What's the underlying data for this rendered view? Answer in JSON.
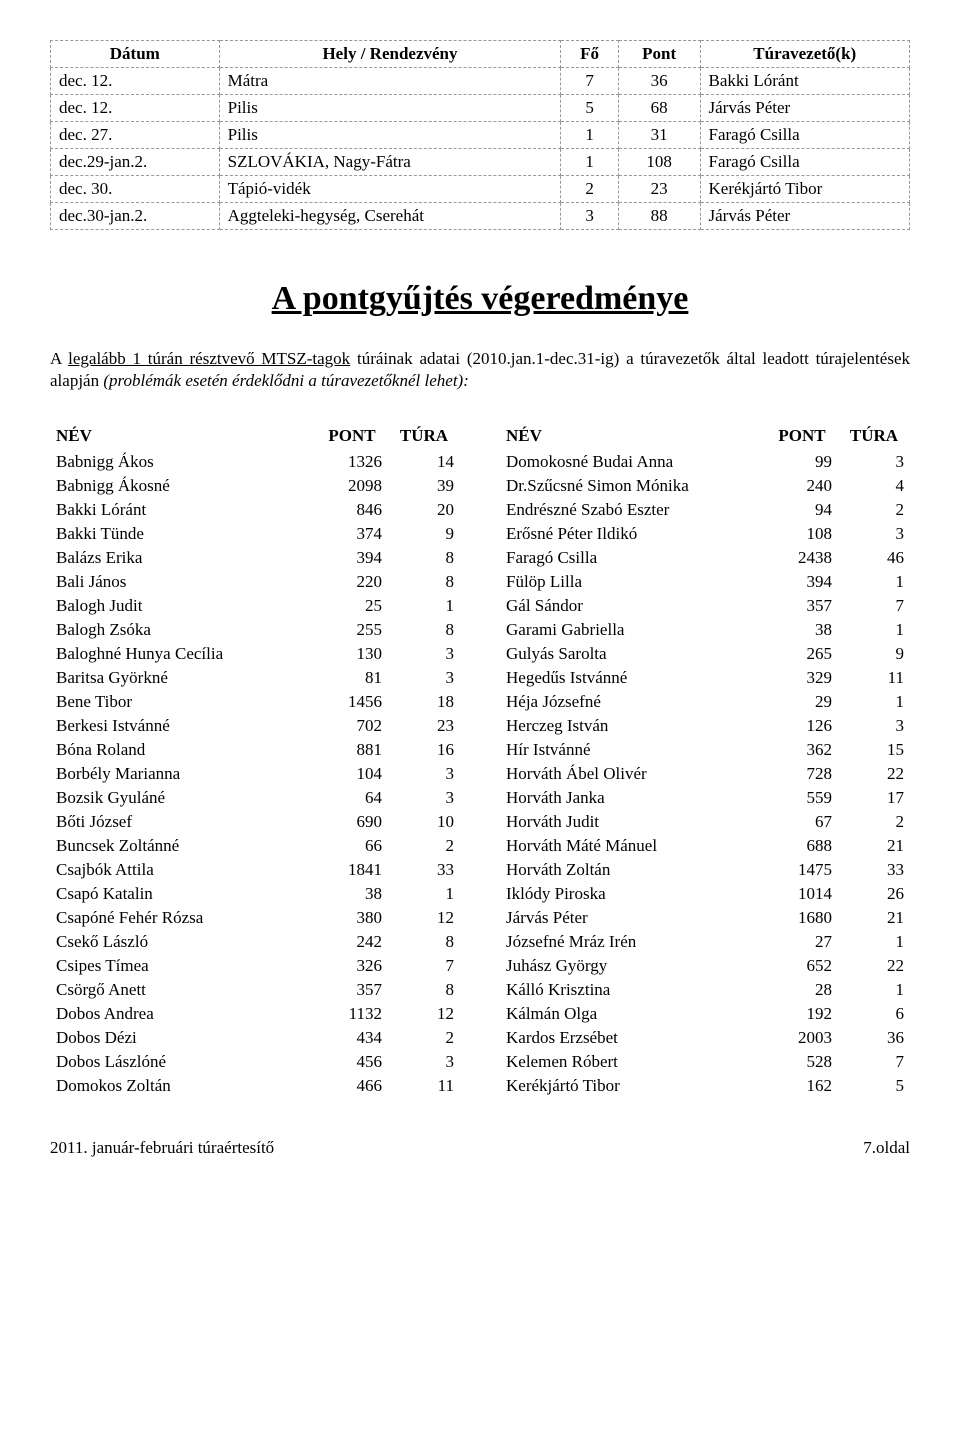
{
  "top_table": {
    "headers": [
      "Dátum",
      "Hely / Rendezvény",
      "Fő",
      "Pont",
      "Túravezető(k)"
    ],
    "rows": [
      [
        "dec. 12.",
        "Mátra",
        "7",
        "36",
        "Bakki Lóránt"
      ],
      [
        "dec. 12.",
        "Pilis",
        "5",
        "68",
        "Járvás Péter"
      ],
      [
        "dec. 27.",
        "Pilis",
        "1",
        "31",
        "Faragó Csilla"
      ],
      [
        "dec.29-jan.2.",
        "SZLOVÁKIA, Nagy-Fátra",
        "1",
        "108",
        "Faragó Csilla"
      ],
      [
        "dec. 30.",
        "Tápió-vidék",
        "2",
        "23",
        "Kerékjártó Tibor"
      ],
      [
        "dec.30-jan.2.",
        "Aggteleki-hegység, Cserehát",
        "3",
        "88",
        "Járvás Péter"
      ]
    ]
  },
  "title": "A pontgyűjtés végeredménye",
  "intro": {
    "pre": "A ",
    "underlined": "legalább 1 túrán résztvevő MTSZ-tagok",
    "mid": " túráinak adatai (2010.jan.1-dec.31-ig) a túravezetők által leadott túrajelentések alapján ",
    "italic": "(problémák esetén érdeklődni a túravezetőknél lehet):"
  },
  "list_headers": [
    "NÉV",
    "PONT",
    "TÚRA"
  ],
  "left_col": [
    [
      "Babnigg Ákos",
      "1326",
      "14"
    ],
    [
      "Babnigg Ákosné",
      "2098",
      "39"
    ],
    [
      "Bakki Lóránt",
      "846",
      "20"
    ],
    [
      "Bakki Tünde",
      "374",
      "9"
    ],
    [
      "Balázs Erika",
      "394",
      "8"
    ],
    [
      "Bali János",
      "220",
      "8"
    ],
    [
      "Balogh Judit",
      "25",
      "1"
    ],
    [
      "Balogh Zsóka",
      "255",
      "8"
    ],
    [
      "Baloghné Hunya Cecília",
      "130",
      "3"
    ],
    [
      "Baritsa Györkné",
      "81",
      "3"
    ],
    [
      "Bene Tibor",
      "1456",
      "18"
    ],
    [
      "Berkesi Istvánné",
      "702",
      "23"
    ],
    [
      "Bóna Roland",
      "881",
      "16"
    ],
    [
      "Borbély Marianna",
      "104",
      "3"
    ],
    [
      "Bozsik Gyuláné",
      "64",
      "3"
    ],
    [
      "Bőti József",
      "690",
      "10"
    ],
    [
      "Buncsek Zoltánné",
      "66",
      "2"
    ],
    [
      "Csajbók Attila",
      "1841",
      "33"
    ],
    [
      "Csapó Katalin",
      "38",
      "1"
    ],
    [
      "Csapóné Fehér Rózsa",
      "380",
      "12"
    ],
    [
      "Csekő László",
      "242",
      "8"
    ],
    [
      "Csipes Tímea",
      "326",
      "7"
    ],
    [
      "Csörgő Anett",
      "357",
      "8"
    ],
    [
      "Dobos Andrea",
      "1132",
      "12"
    ],
    [
      "Dobos Dézi",
      "434",
      "2"
    ],
    [
      "Dobos Lászlóné",
      "456",
      "3"
    ],
    [
      "Domokos Zoltán",
      "466",
      "11"
    ]
  ],
  "right_col": [
    [
      "Domokosné Budai Anna",
      "99",
      "3"
    ],
    [
      "Dr.Szűcsné Simon Mónika",
      "240",
      "4"
    ],
    [
      "Endrészné Szabó Eszter",
      "94",
      "2"
    ],
    [
      "Erősné Péter Ildikó",
      "108",
      "3"
    ],
    [
      "Faragó Csilla",
      "2438",
      "46"
    ],
    [
      "Fülöp Lilla",
      "394",
      "1"
    ],
    [
      "Gál Sándor",
      "357",
      "7"
    ],
    [
      "Garami Gabriella",
      "38",
      "1"
    ],
    [
      "Gulyás Sarolta",
      "265",
      "9"
    ],
    [
      "Hegedűs Istvánné",
      "329",
      "11"
    ],
    [
      "Héja Józsefné",
      "29",
      "1"
    ],
    [
      "Herczeg István",
      "126",
      "3"
    ],
    [
      "Hír Istvánné",
      "362",
      "15"
    ],
    [
      "Horváth Ábel Olivér",
      "728",
      "22"
    ],
    [
      "Horváth Janka",
      "559",
      "17"
    ],
    [
      "Horváth Judit",
      "67",
      "2"
    ],
    [
      "Horváth Máté Mánuel",
      "688",
      "21"
    ],
    [
      "Horváth Zoltán",
      "1475",
      "33"
    ],
    [
      "Iklódy Piroska",
      "1014",
      "26"
    ],
    [
      "Járvás Péter",
      "1680",
      "21"
    ],
    [
      "Józsefné Mráz Irén",
      "27",
      "1"
    ],
    [
      "Juhász György",
      "652",
      "22"
    ],
    [
      "Kálló Krisztina",
      "28",
      "1"
    ],
    [
      "Kálmán Olga",
      "192",
      "6"
    ],
    [
      "Kardos Erzsébet",
      "2003",
      "36"
    ],
    [
      "Kelemen Róbert",
      "528",
      "7"
    ],
    [
      "Kerékjártó Tibor",
      "162",
      "5"
    ]
  ],
  "footer": {
    "left": "2011. január-februári túraértesítő",
    "right": "7.oldal"
  }
}
